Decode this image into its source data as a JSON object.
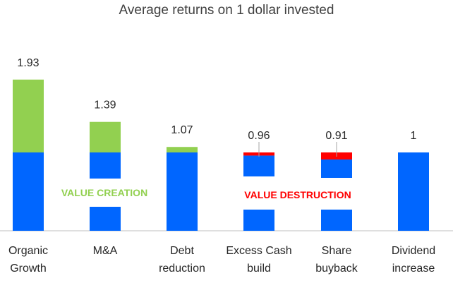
{
  "chart_data": {
    "type": "bar",
    "title": "Average returns on 1 dollar invested",
    "categories": [
      [
        "Organic",
        "Growth"
      ],
      [
        "M&A"
      ],
      [
        "Debt",
        "reduction"
      ],
      [
        "Excess Cash",
        "build"
      ],
      [
        "Share",
        "buyback"
      ],
      [
        "Dividend",
        "increase"
      ]
    ],
    "values": [
      1.93,
      1.39,
      1.07,
      0.96,
      0.91,
      1
    ],
    "value_labels": [
      "1.93",
      "1.39",
      "1.07",
      "0.96",
      "0.91",
      "1"
    ],
    "baseline": 1,
    "ylim": [
      0,
      2
    ],
    "annotations": [
      {
        "text": "VALUE CREATION",
        "color": "#92d050"
      },
      {
        "text": "VALUE DESTRUCTION",
        "color": "#ff0000"
      }
    ],
    "colors": {
      "base": "#0066ff",
      "gain": "#92d050",
      "loss": "#ff0000"
    }
  }
}
